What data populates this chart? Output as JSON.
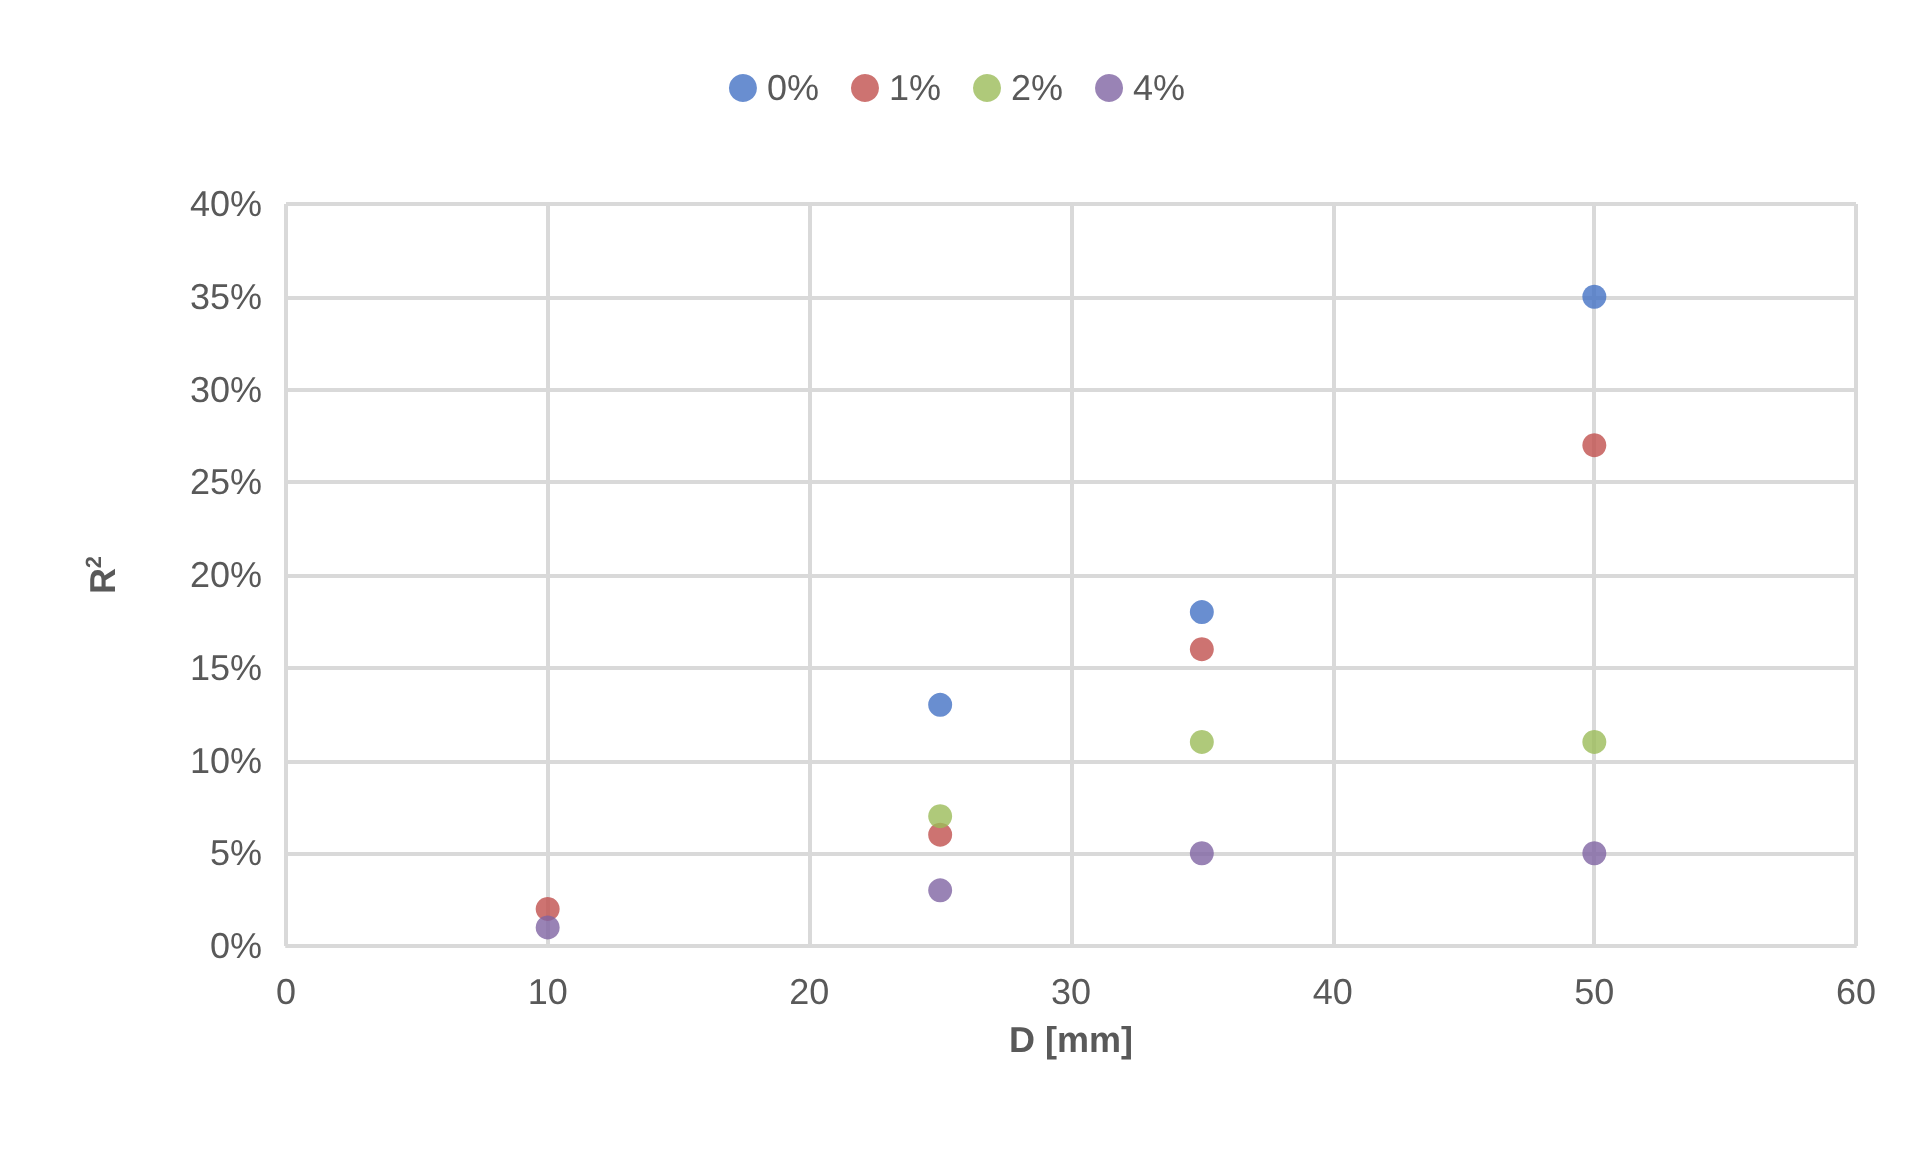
{
  "chart_data": {
    "type": "scatter",
    "xlabel": "D [mm]",
    "ylabel": "R$^{2}$",
    "x": [
      10,
      25,
      35,
      50
    ],
    "series": [
      {
        "name": "0%",
        "color": "#4472c4",
        "values": [
          null,
          13,
          18,
          35
        ]
      },
      {
        "name": "1%",
        "color": "#c0504d",
        "values": [
          2,
          6,
          16,
          27
        ]
      },
      {
        "name": "2%",
        "color": "#9bbb59",
        "values": [
          null,
          7,
          11,
          11
        ]
      },
      {
        "name": "4%",
        "color": "#8064a2",
        "values": [
          1,
          3,
          5,
          5
        ]
      }
    ],
    "xlim": [
      0,
      60
    ],
    "xticks": [
      0,
      10,
      20,
      30,
      40,
      50,
      60
    ],
    "ylim": [
      0,
      40
    ],
    "yticks": [
      {
        "value": 0,
        "label": "0%"
      },
      {
        "value": 5,
        "label": "5%"
      },
      {
        "value": 10,
        "label": "10%"
      },
      {
        "value": 15,
        "label": "15%"
      },
      {
        "value": 20,
        "label": "20%"
      },
      {
        "value": 25,
        "label": "25%"
      },
      {
        "value": 30,
        "label": "30%"
      },
      {
        "value": 35,
        "label": "35%"
      },
      {
        "value": 40,
        "label": "40%"
      }
    ],
    "grid": true,
    "legend": "top",
    "marker": "circle"
  }
}
